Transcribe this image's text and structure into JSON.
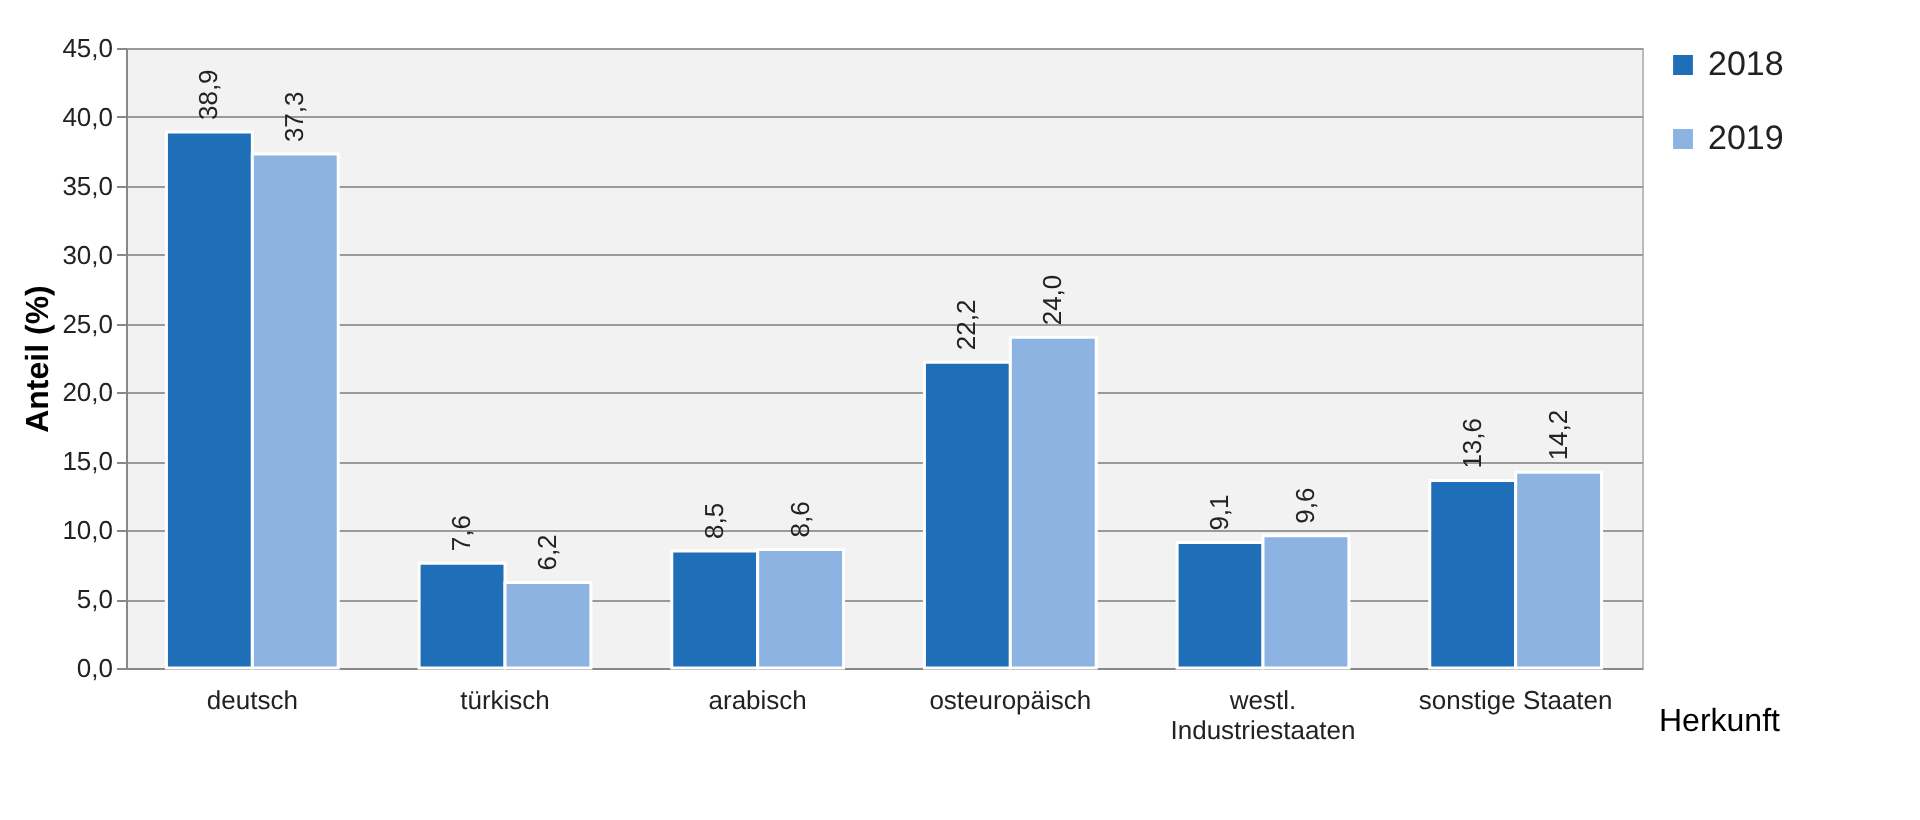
{
  "chart_data": {
    "type": "bar",
    "ylabel": "Anteil (%)",
    "xlabel": "Herkunft",
    "categories": [
      "deutsch",
      "türkisch",
      "arabisch",
      "osteuropäisch",
      "westl. Industriestaaten",
      "sonstige Staaten"
    ],
    "series": [
      {
        "name": "2018",
        "color": "#1f6eb8",
        "values": [
          38.9,
          7.6,
          8.5,
          22.2,
          9.1,
          13.6
        ],
        "value_labels": [
          "38,9",
          "7,6",
          "8,5",
          "22,2",
          "9,1",
          "13,6"
        ]
      },
      {
        "name": "2019",
        "color": "#8db3e2",
        "values": [
          37.3,
          6.2,
          8.6,
          24.0,
          9.6,
          14.2
        ],
        "value_labels": [
          "37,3",
          "6,2",
          "8,6",
          "24,0",
          "9,6",
          "14,2"
        ]
      }
    ],
    "ylim": [
      0,
      45
    ],
    "yticks": [
      {
        "value": 0,
        "label": "0,0"
      },
      {
        "value": 5,
        "label": "5,0"
      },
      {
        "value": 10,
        "label": "10,0"
      },
      {
        "value": 15,
        "label": "15,0"
      },
      {
        "value": 20,
        "label": "20,0"
      },
      {
        "value": 25,
        "label": "25,0"
      },
      {
        "value": 30,
        "label": "30,0"
      },
      {
        "value": 35,
        "label": "35,0"
      },
      {
        "value": 40,
        "label": "40,0"
      },
      {
        "value": 45,
        "label": "45,0"
      }
    ],
    "grid": "y",
    "legend": "right"
  }
}
